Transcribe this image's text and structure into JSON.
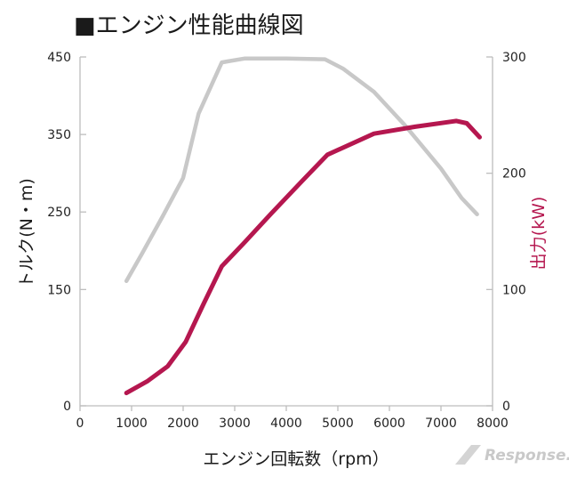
{
  "chart_data": {
    "type": "line",
    "title": "■エンジン性能曲線図",
    "xlabel": "エンジン回転数（rpm）",
    "ylabel_left": "トルク(N・m)",
    "ylabel_right": "出力(kW)",
    "xlim": [
      0,
      8000
    ],
    "ylim_left": [
      0,
      450
    ],
    "ylim_right": [
      0,
      300
    ],
    "x_ticks": [
      0,
      1000,
      2000,
      3000,
      4000,
      5000,
      6000,
      7000,
      8000
    ],
    "y_left_ticks": [
      0,
      150,
      250,
      350,
      450
    ],
    "y_right_ticks": [
      0,
      100,
      200,
      300
    ],
    "grid": false,
    "series": [
      {
        "name": "トルク",
        "axis": "left",
        "color": "#c8c8c8",
        "x": [
          900,
          1200,
          1600,
          2000,
          2300,
          2750,
          3200,
          4000,
          4750,
          5100,
          5700,
          6300,
          7000,
          7400,
          7700
        ],
        "y": [
          161,
          196,
          244,
          294,
          377,
          443,
          448,
          448,
          447,
          435,
          405,
          362,
          306,
          268,
          247
        ]
      },
      {
        "name": "出力",
        "axis": "right",
        "color": "#b5174f",
        "x": [
          900,
          1300,
          1700,
          2050,
          2400,
          2750,
          3200,
          3700,
          4300,
          4800,
          5700,
          6500,
          7300,
          7500,
          7750
        ],
        "y": [
          11,
          21,
          34,
          55,
          88,
          120,
          141,
          165,
          193,
          216,
          234,
          240,
          245,
          243,
          231
        ]
      }
    ]
  },
  "watermark": {
    "text": "Response."
  }
}
